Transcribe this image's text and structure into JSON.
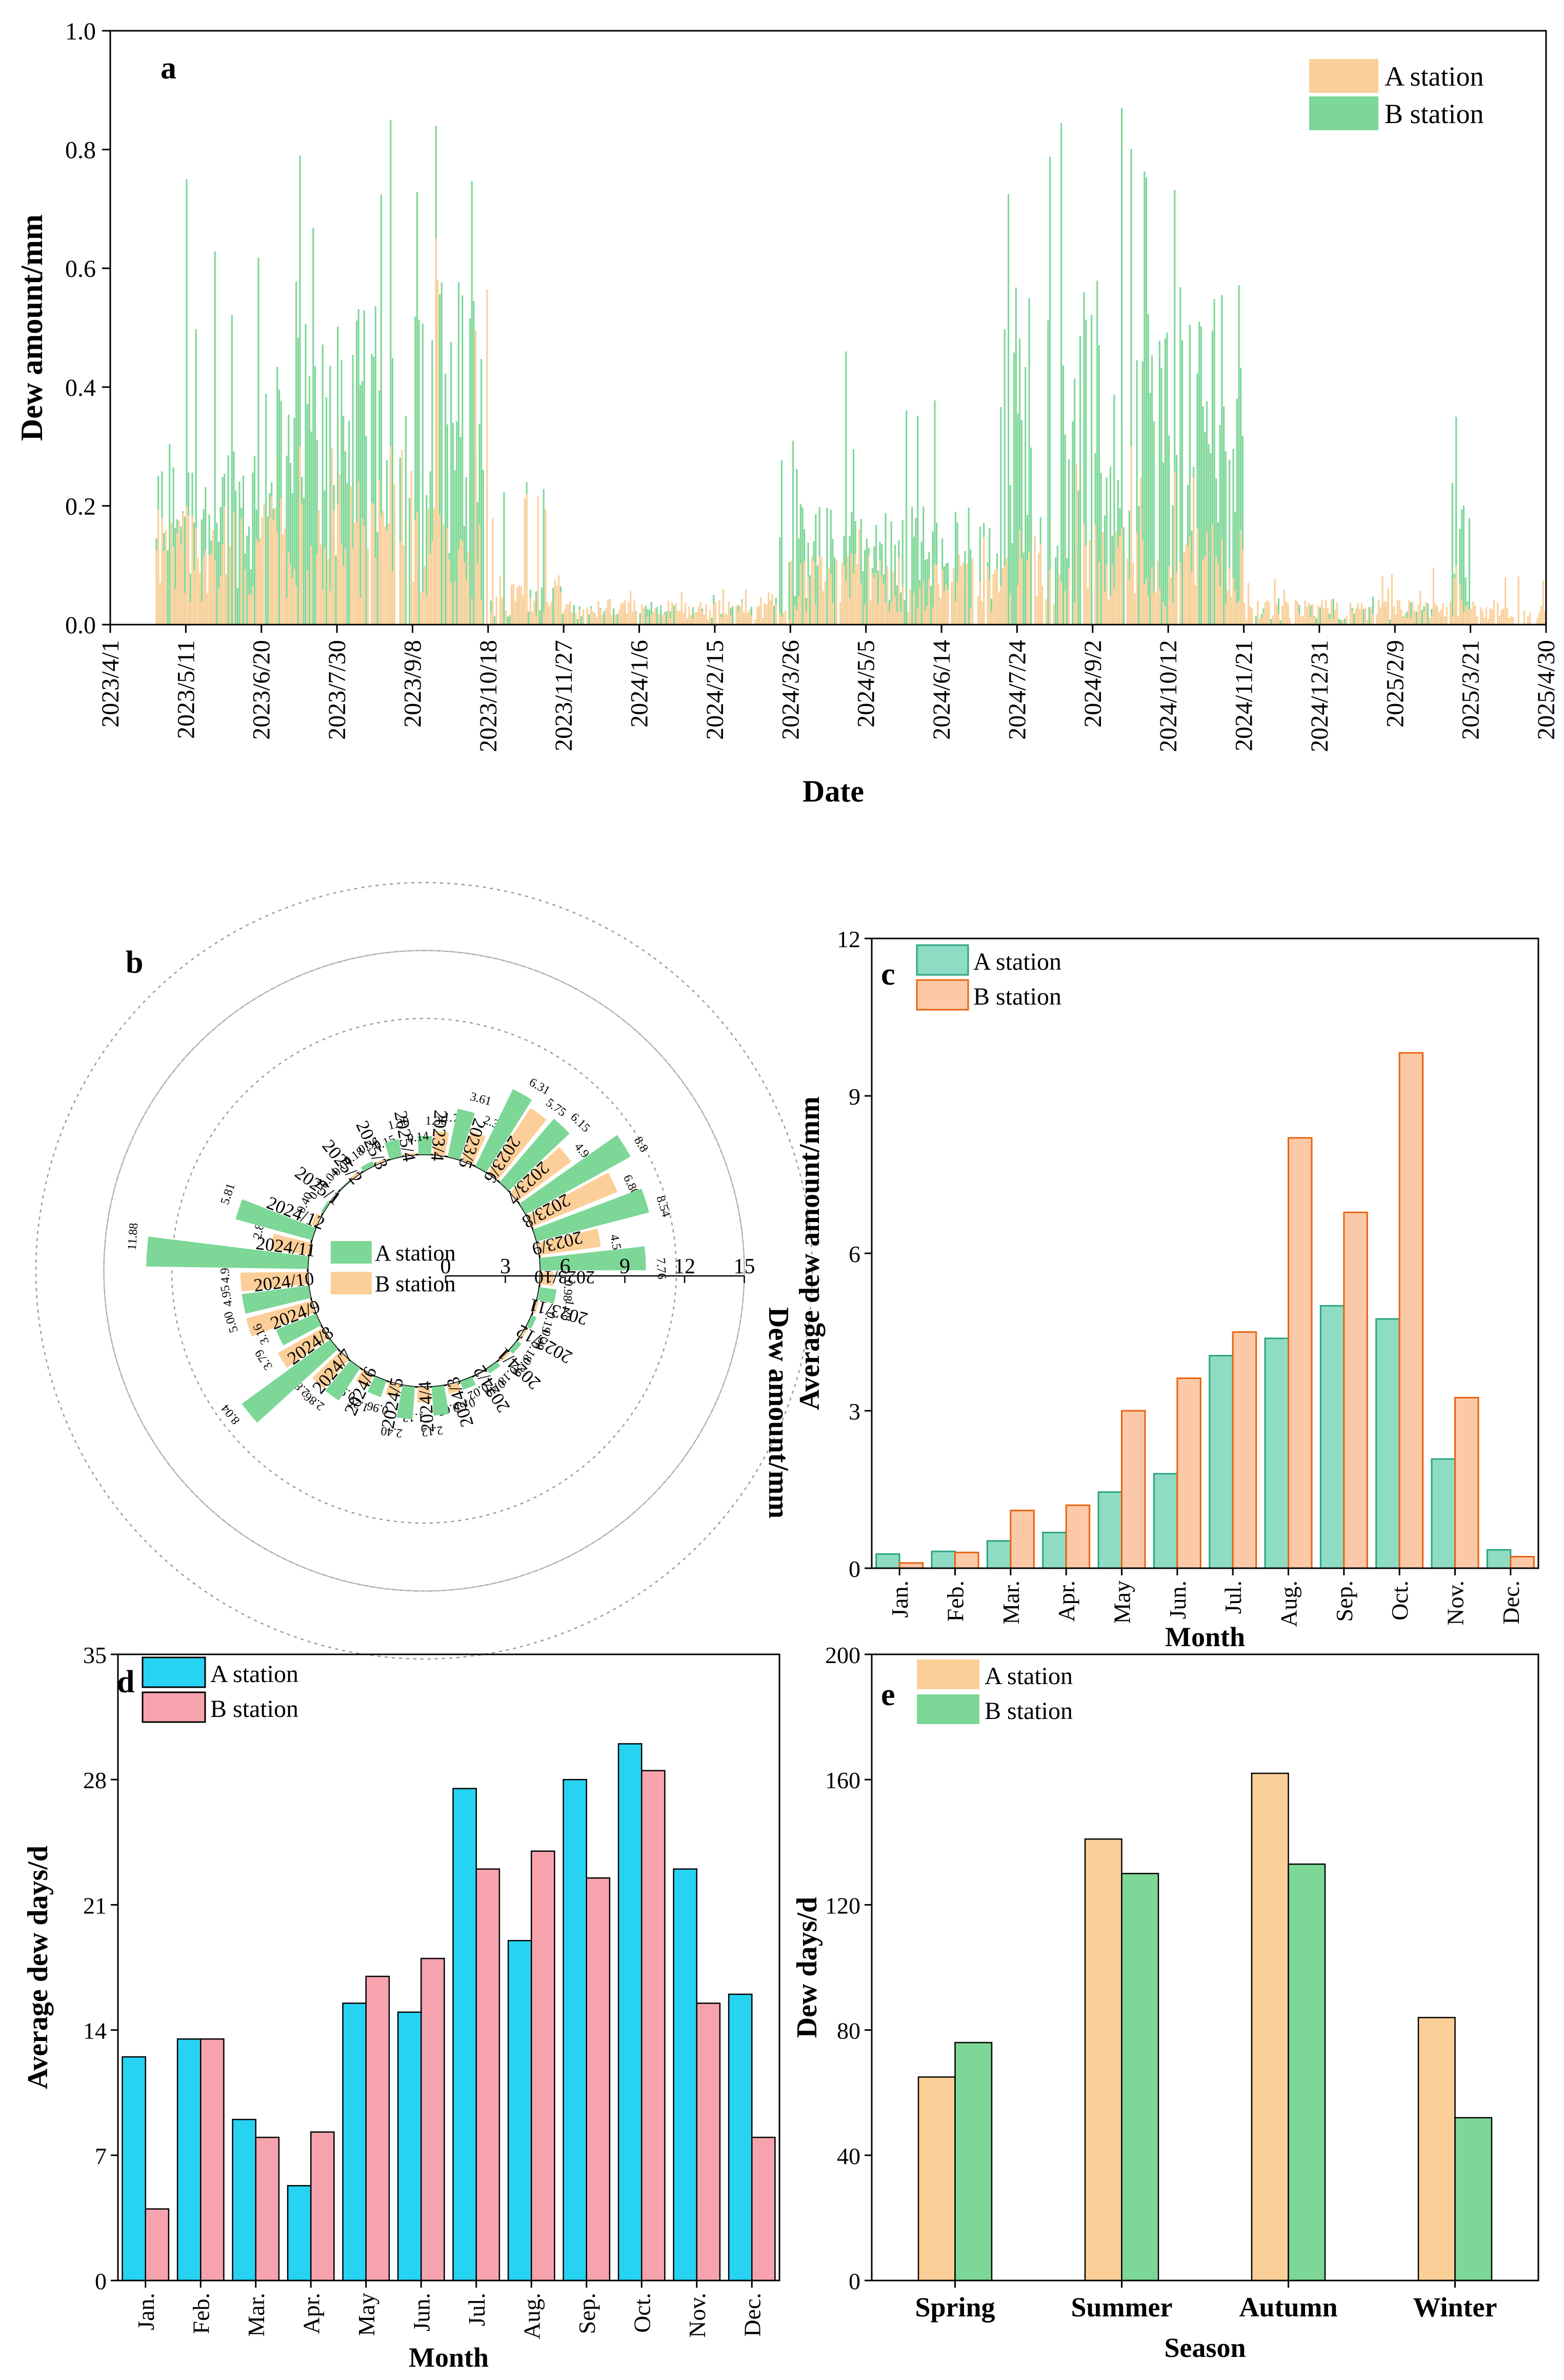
{
  "chart_data": [
    {
      "panel": "a",
      "type": "bar",
      "title": "",
      "xlabel": "Date",
      "ylabel": "Dew amount/mm",
      "ylim": [
        0,
        1.0
      ],
      "yticks": [
        "0.0",
        "0.2",
        "0.4",
        "0.6",
        "0.8",
        "1.0"
      ],
      "x_tick_labels": [
        "2023/4/1",
        "2023/5/11",
        "2023/6/20",
        "2023/7/30",
        "2023/9/8",
        "2023/10/18",
        "2023/11/27",
        "2024/1/6",
        "2024/2/15",
        "2024/3/26",
        "2024/5/5",
        "2024/6/14",
        "2024/7/24",
        "2024/9/2",
        "2024/10/12",
        "2024/11/21",
        "2024/12/31",
        "2025/2/9",
        "2025/3/21",
        "2025/4/30"
      ],
      "x_start": "2023/4/1",
      "x_end": "2025/4/30",
      "legend": [
        "A station",
        "B station"
      ],
      "legend_position": "top-right",
      "colors": {
        "A station": "#fccf98",
        "B station": "#7dd797"
      },
      "series_envelope": [
        {
          "name": "A station",
          "date_ranges": [
            {
              "from": "2023/4/25",
              "to": "2023/6/20",
              "typical": 0.12,
              "max": 0.2
            },
            {
              "from": "2023/6/20",
              "to": "2023/7/30",
              "typical": 0.14,
              "max": 0.3
            },
            {
              "from": "2023/7/30",
              "to": "2023/9/8",
              "typical": 0.15,
              "max": 0.3
            },
            {
              "from": "2023/9/8",
              "to": "2023/10/18",
              "typical": 0.12,
              "max": 0.65
            },
            {
              "from": "2023/10/18",
              "to": "2023/11/27",
              "typical": 0.05,
              "max": 0.22
            },
            {
              "from": "2023/11/27",
              "to": "2024/3/26",
              "typical": 0.025,
              "max": 0.06
            },
            {
              "from": "2024/3/26",
              "to": "2024/7/24",
              "typical": 0.07,
              "max": 0.16
            },
            {
              "from": "2024/7/24",
              "to": "2024/11/21",
              "typical": 0.1,
              "max": 0.3
            },
            {
              "from": "2024/11/21",
              "to": "2025/4/30",
              "typical": 0.025,
              "max": 0.1
            }
          ]
        },
        {
          "name": "B station",
          "date_ranges": [
            {
              "from": "2023/4/25",
              "to": "2023/6/20",
              "typical": 0.2,
              "max": 0.75
            },
            {
              "from": "2023/6/20",
              "to": "2023/7/30",
              "typical": 0.3,
              "max": 0.79
            },
            {
              "from": "2023/7/30",
              "to": "2023/9/8",
              "typical": 0.32,
              "max": 0.85
            },
            {
              "from": "2023/9/8",
              "to": "2023/10/18",
              "typical": 0.35,
              "max": 0.84
            },
            {
              "from": "2023/10/18",
              "to": "2023/11/27",
              "typical": 0.04,
              "max": 0.24
            },
            {
              "from": "2023/11/27",
              "to": "2024/3/20",
              "typical": 0.02,
              "max": 0.05
            },
            {
              "from": "2024/3/20",
              "to": "2024/7/15",
              "typical": 0.12,
              "max": 0.46
            },
            {
              "from": "2024/7/15",
              "to": "2024/11/21",
              "typical": 0.35,
              "max": 0.87
            },
            {
              "from": "2024/11/21",
              "to": "2025/3/10",
              "typical": 0.02,
              "max": 0.05
            },
            {
              "from": "2025/3/10",
              "to": "2025/3/21",
              "typical": 0.12,
              "max": 0.35
            }
          ]
        }
      ]
    },
    {
      "panel": "b",
      "type": "bar",
      "subtype": "radial",
      "title": "",
      "ylabel": "Dew amount/mm",
      "radial_ticks": [
        "0",
        "3",
        "6",
        "9",
        "12",
        "15"
      ],
      "rlim": [
        0,
        15
      ],
      "legend": [
        "A station",
        "B station"
      ],
      "legend_position": "center",
      "categories": [
        "2023/4",
        "2023/5",
        "2023/6",
        "2023/7",
        "2023/8",
        "2023/9",
        "2023/10",
        "2023/11",
        "2023/12",
        "2024/1",
        "2024/2",
        "2024/3",
        "2024/4",
        "2024/5",
        "2024/6",
        "2024/7",
        "2024/8",
        "2024/9",
        "2024/10",
        "2024/11",
        "2024/12",
        "2025/1",
        "2025/2",
        "2025/3",
        "2025/4"
      ],
      "series": [
        {
          "name": "A station",
          "color": "#7dd797",
          "values": [
            1.36,
            3.61,
            6.31,
            6.15,
            8.8,
            8.54,
            7.76,
            1.28,
            0.39,
            0.39,
            0.4,
            0.65,
            2.12,
            2.4,
            1.26,
            2.86,
            8.04,
            3.16,
            4.95,
            11.88,
            5.81,
            0.18,
            0.04,
            0.36,
            1.3
          ]
        },
        {
          "name": "B station",
          "color": "#fccf98",
          "values": [
            1.75,
            2.31,
            5.75,
            4.92,
            6.8,
            4.56,
            0.98,
            0.19,
            0.18,
            0.18,
            0.02,
            0.65,
            1.13,
            0.96,
            0.96,
            2.82,
            3.79,
            5.0,
            4.95,
            2.83,
            0.4,
            0.04,
            0.18,
            0.15,
            0.14
          ]
        }
      ],
      "value_labels": {
        "A station": [
          "1.36",
          "3.61",
          "6.31",
          "6.15",
          "8.8",
          "8.54",
          "7.76",
          "1.28",
          "0.39",
          "0.39",
          "0.40",
          "0.65",
          "2.12",
          "2.40",
          "1.26",
          "2.86",
          "8.04",
          "3.16",
          "4.95",
          "11.88",
          "5.81",
          "0.18",
          "0.04",
          "0.36",
          "1.30"
        ],
        "B station": [
          "1.75",
          "2.31",
          "5.75",
          "4.92",
          "6.80",
          "4.56",
          "0.98",
          "0.19",
          "0.18",
          "0.18",
          "0.02",
          "0.65",
          "1.13",
          "0.96",
          "0.96",
          "2.82",
          "3.79",
          "5.00",
          "4.95",
          "2.83",
          "0.40",
          "0.04",
          "0.18",
          "0.15",
          "0.14"
        ]
      }
    },
    {
      "panel": "c",
      "type": "bar",
      "title": "",
      "xlabel": "Month",
      "ylabel": "Average dew amount/mm",
      "ylim": [
        0,
        12
      ],
      "yticks": [
        "0",
        "3",
        "6",
        "9",
        "12"
      ],
      "categories": [
        "Jan.",
        "Feb.",
        "Mar.",
        "Apr.",
        "May",
        "Jun.",
        "Jul.",
        "Aug.",
        "Sep.",
        "Oct.",
        "Nov.",
        "Dec."
      ],
      "legend_position": "top-left",
      "series": [
        {
          "name": "A station",
          "color": "#8fdcc5",
          "edge": "#2aa580",
          "values": [
            0.27,
            0.32,
            0.52,
            0.68,
            1.45,
            1.8,
            4.05,
            4.38,
            5.0,
            4.75,
            2.08,
            0.35
          ]
        },
        {
          "name": "B station",
          "color": "#fcc9a8",
          "edge": "#e8620f",
          "values": [
            0.1,
            0.3,
            1.1,
            1.2,
            3.0,
            3.62,
            4.5,
            8.2,
            6.78,
            9.82,
            3.25,
            0.22
          ]
        }
      ]
    },
    {
      "panel": "d",
      "type": "bar",
      "title": "",
      "xlabel": "Month",
      "ylabel": "Average dew days/d",
      "ylim": [
        0,
        35
      ],
      "yticks": [
        "0",
        "7",
        "14",
        "21",
        "28",
        "35"
      ],
      "categories": [
        "Jan.",
        "Feb.",
        "Mar.",
        "Apr.",
        "May",
        "Jun.",
        "Jul.",
        "Aug.",
        "Sep.",
        "Oct.",
        "Nov.",
        "Dec."
      ],
      "legend_position": "top-left",
      "series": [
        {
          "name": "A station",
          "color": "#27d3f3",
          "values": [
            12.5,
            13.5,
            9.0,
            5.3,
            15.5,
            15.0,
            27.5,
            19.0,
            28.0,
            30.0,
            23.0,
            16.0
          ]
        },
        {
          "name": "B station",
          "color": "#f6a3ae",
          "values": [
            4.0,
            13.5,
            8.0,
            8.3,
            17.0,
            18.0,
            23.0,
            24.0,
            22.5,
            28.5,
            15.5,
            8.0
          ]
        }
      ]
    },
    {
      "panel": "e",
      "type": "bar",
      "title": "",
      "xlabel": "Season",
      "ylabel": "Dew days/d",
      "ylim": [
        0,
        200
      ],
      "yticks": [
        "0",
        "40",
        "80",
        "120",
        "160",
        "200"
      ],
      "categories": [
        "Spring",
        "Summer",
        "Autumn",
        "Winter"
      ],
      "legend_position": "top-left",
      "series": [
        {
          "name": "A station",
          "color": "#fccf98",
          "values": [
            65,
            141,
            162,
            84
          ]
        },
        {
          "name": "B station",
          "color": "#7dd797",
          "values": [
            76,
            130,
            133,
            52
          ]
        }
      ]
    }
  ]
}
